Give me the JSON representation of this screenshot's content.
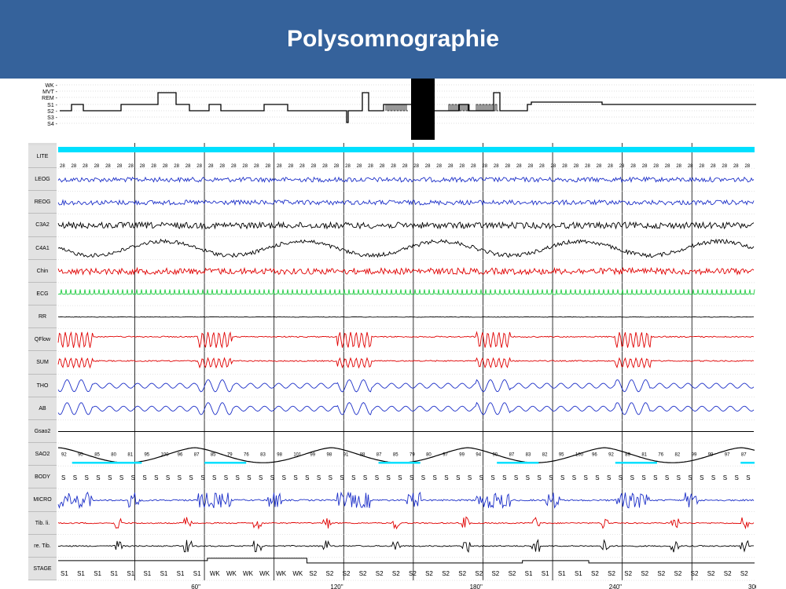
{
  "title": "Polysomnographie",
  "hypnogram": {
    "stage_labels": [
      "WK -",
      "MVT -",
      "REM -",
      "S1 -",
      "S2 -",
      "S3 -",
      "S4 -"
    ]
  },
  "channels": [
    {
      "id": "lite",
      "label": "LITE",
      "color": "#00e0ff",
      "kind": "lite"
    },
    {
      "id": "leog",
      "label": "LEOG",
      "color": "#1c2fc8",
      "kind": "noise",
      "amp": 3
    },
    {
      "id": "reog",
      "label": "REOG",
      "color": "#1c2fc8",
      "kind": "noise",
      "amp": 3
    },
    {
      "id": "c3a2",
      "label": "C3A2",
      "color": "#000000",
      "kind": "noise",
      "amp": 4
    },
    {
      "id": "c4a1",
      "label": "C4A1",
      "color": "#000000",
      "kind": "wave",
      "amp": 9
    },
    {
      "id": "chin",
      "label": "Chin",
      "color": "#e00000",
      "kind": "noise",
      "amp": 4
    },
    {
      "id": "ecg",
      "label": "ECG",
      "color": "#22cc44",
      "kind": "spikes",
      "amp": 6
    },
    {
      "id": "rr",
      "label": "RR",
      "color": "#000000",
      "kind": "flat",
      "amp": 2
    },
    {
      "id": "qflow",
      "label": "QFlow",
      "color": "#e00000",
      "kind": "bursts",
      "amp": 10
    },
    {
      "id": "sum",
      "label": "SUM",
      "color": "#e00000",
      "kind": "bursts",
      "amp": 6
    },
    {
      "id": "tho",
      "label": "THO",
      "color": "#1c2fc8",
      "kind": "resp",
      "amp": 7
    },
    {
      "id": "ab",
      "label": "AB",
      "color": "#1c2fc8",
      "kind": "resp",
      "amp": 7
    },
    {
      "id": "gsao2",
      "label": "Gsao2",
      "color": "#000000",
      "kind": "flat",
      "amp": 0
    },
    {
      "id": "sao2",
      "label": "SAO2",
      "color": "#000000",
      "kind": "sat",
      "amp": 8
    },
    {
      "id": "body",
      "label": "BODY",
      "color": "#000000",
      "kind": "body"
    },
    {
      "id": "micro",
      "label": "MICRO",
      "color": "#1c2fc8",
      "kind": "micro",
      "amp": 10
    },
    {
      "id": "tibli",
      "label": "Tib. li.",
      "color": "#e00000",
      "kind": "legs",
      "amp": 8
    },
    {
      "id": "retib",
      "label": "re. Tib.",
      "color": "#000000",
      "kind": "legs",
      "amp": 8
    },
    {
      "id": "stage",
      "label": "STAGE",
      "color": "#000000",
      "kind": "stage"
    }
  ],
  "lite_values": [
    "28",
    "28",
    "28",
    "28",
    "28",
    "28",
    "28",
    "28",
    "28",
    "28",
    "28",
    "28",
    "28",
    "28",
    "28",
    "28",
    "28",
    "28",
    "28",
    "28",
    "28",
    "28",
    "28",
    "28",
    "28",
    "28",
    "28",
    "28",
    "28",
    "28",
    "28",
    "28",
    "28",
    "28",
    "28",
    "28",
    "28",
    "28",
    "28",
    "28",
    "28",
    "28",
    "28",
    "28",
    "28",
    "28",
    "28",
    "28",
    "28",
    "28",
    "28",
    "28",
    "28",
    "28",
    "28",
    "28",
    "28",
    "28",
    "28",
    "28",
    "28"
  ],
  "sao2_values": [
    "92",
    "90",
    "85",
    "80",
    "81",
    "95",
    "100",
    "96",
    "87",
    "85",
    "79",
    "76",
    "83",
    "98",
    "101",
    "99",
    "98",
    "91",
    "88",
    "87",
    "85",
    "79",
    "80",
    "97",
    "99",
    "94",
    "90",
    "87",
    "83",
    "82",
    "95",
    "100",
    "96",
    "92",
    "89",
    "81",
    "76",
    "82",
    "99",
    "99",
    "97",
    "87"
  ],
  "body_position": "S",
  "stage_sequence": [
    "S1",
    "S1",
    "S1",
    "S1",
    "S1",
    "S1",
    "S1",
    "S1",
    "S1",
    "WK",
    "WK",
    "WK",
    "WK",
    "WK",
    "WK",
    "S2",
    "S2",
    "S2",
    "S2",
    "S2",
    "S2",
    "S2",
    "S2",
    "S2",
    "S2",
    "S2",
    "S2",
    "S2",
    "S1",
    "S1",
    "S1",
    "S1",
    "S2",
    "S2",
    "S2",
    "S2",
    "S2",
    "S2",
    "S2",
    "S2",
    "S2",
    "S2"
  ],
  "time_axis": [
    "60\"",
    "120\"",
    "180\"",
    "240\"",
    "300\""
  ],
  "colors": {
    "header": "#35629b",
    "eeg": "#000000",
    "eog": "#1c2fc8",
    "emg": "#e00000",
    "ecg": "#22cc44",
    "lite": "#00e0ff"
  }
}
